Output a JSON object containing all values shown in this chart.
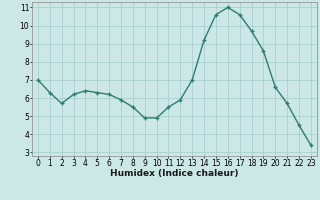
{
  "x": [
    0,
    1,
    2,
    3,
    4,
    5,
    6,
    7,
    8,
    9,
    10,
    11,
    12,
    13,
    14,
    15,
    16,
    17,
    18,
    19,
    20,
    21,
    22,
    23
  ],
  "y": [
    7.0,
    6.3,
    5.7,
    6.2,
    6.4,
    6.3,
    6.2,
    5.9,
    5.5,
    4.9,
    4.9,
    5.5,
    5.9,
    7.0,
    9.2,
    10.6,
    11.0,
    10.6,
    9.7,
    8.6,
    6.6,
    5.7,
    4.5,
    3.4
  ],
  "xlabel": "Humidex (Indice chaleur)",
  "line_color": "#2e7d6e",
  "marker": "+",
  "bg_color": "#cce8e6",
  "grid_color": "#aacfcc",
  "xlim": [
    -0.5,
    23.5
  ],
  "ylim": [
    2.8,
    11.3
  ],
  "yticks": [
    3,
    4,
    5,
    6,
    7,
    8,
    9,
    10,
    11
  ],
  "xticks": [
    0,
    1,
    2,
    3,
    4,
    5,
    6,
    7,
    8,
    9,
    10,
    11,
    12,
    13,
    14,
    15,
    16,
    17,
    18,
    19,
    20,
    21,
    22,
    23
  ],
  "tick_fontsize": 5.5,
  "xlabel_fontsize": 6.5
}
